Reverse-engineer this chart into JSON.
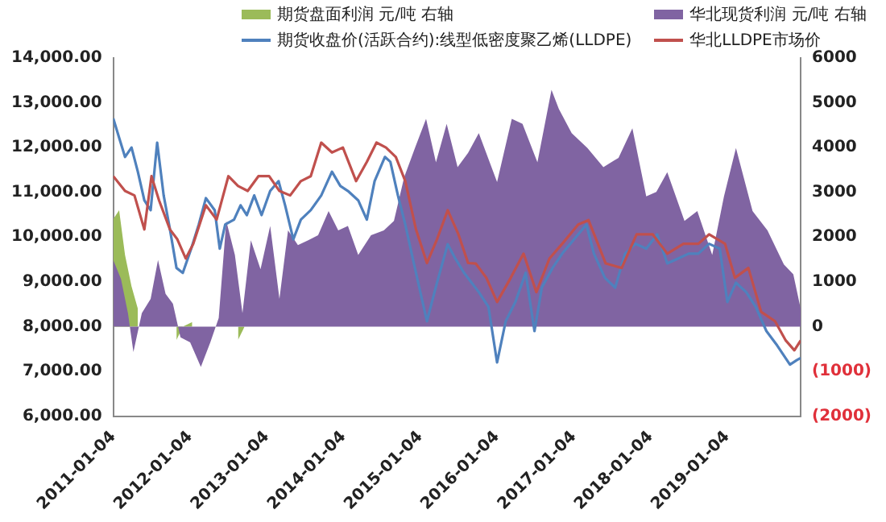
{
  "chart_data": {
    "type": "line",
    "legend": "top",
    "grid": false,
    "xlim": [
      "2011-01-04",
      "2019-12-20"
    ],
    "xticks": [
      "2011-01-04",
      "2012-01-04",
      "2013-01-04",
      "2014-01-04",
      "2015-01-04",
      "2016-01-04",
      "2017-01-04",
      "2018-01-04",
      "2019-01-04"
    ],
    "ylim": [
      6000,
      14000
    ],
    "yticks": [
      {
        "value": 6000,
        "label": "6,000.00"
      },
      {
        "value": 7000,
        "label": "7,000.00"
      },
      {
        "value": 8000,
        "label": "8,000.00"
      },
      {
        "value": 9000,
        "label": "9,000.00"
      },
      {
        "value": 10000,
        "label": "10,000.00"
      },
      {
        "value": 11000,
        "label": "11,000.00"
      },
      {
        "value": 12000,
        "label": "12,000.00"
      },
      {
        "value": 13000,
        "label": "13,000.00"
      },
      {
        "value": 14000,
        "label": "14,000.00"
      }
    ],
    "y2lim": [
      -2000,
      6000
    ],
    "y2ticks": [
      {
        "value": -2000,
        "label": "(2000)"
      },
      {
        "value": -1000,
        "label": "(1000)"
      },
      0,
      1000,
      2000,
      3000,
      4000,
      5000,
      6000
    ],
    "series": [
      {
        "name": "期货盘面利润 元/吨 右轴",
        "type": "area",
        "axis": "y2",
        "color": "#9bbb59",
        "x": [
          "2011-01-04",
          "2011-02-01",
          "2011-03-01",
          "2011-04-01",
          "2011-05-01",
          "2011-06-01",
          "2011-07-01",
          "2011-08-05",
          "2011-09-01",
          "2011-10-01",
          "2011-11-01",
          "2011-12-01",
          "2012-01-15",
          "2012-03-01",
          "2012-05-01",
          "2012-07-01",
          "2012-08-20",
          "2012-09-20"
        ],
        "values": [
          2400,
          2600,
          1600,
          900,
          400,
          null,
          null,
          null,
          null,
          null,
          -300,
          0,
          100,
          null,
          null,
          null,
          -300,
          0
        ]
      },
      {
        "name": "华北现货利润 元/吨 右轴",
        "type": "area",
        "axis": "y2",
        "color": "#8064a2",
        "x": [
          "2011-01-04",
          "2011-02-10",
          "2011-03-15",
          "2011-04-10",
          "2011-05-20",
          "2011-07-01",
          "2011-08-05",
          "2011-09-10",
          "2011-10-15",
          "2011-11-20",
          "2012-01-05",
          "2012-02-25",
          "2012-04-10",
          "2012-05-20",
          "2012-06-25",
          "2012-08-05",
          "2012-09-10",
          "2012-10-20",
          "2012-12-05",
          "2013-01-20",
          "2013-03-05",
          "2013-04-15",
          "2013-06-01",
          "2013-07-20",
          "2013-09-05",
          "2013-10-25",
          "2013-12-10",
          "2014-01-25",
          "2014-03-15",
          "2014-05-15",
          "2014-07-15",
          "2014-09-01",
          "2014-10-20",
          "2014-12-10",
          "2015-02-01",
          "2015-03-20",
          "2015-05-10",
          "2015-07-01",
          "2015-08-20",
          "2015-10-10",
          "2016-01-05",
          "2016-03-15",
          "2016-05-05",
          "2016-07-15",
          "2016-09-20",
          "2016-10-25",
          "2016-12-25",
          "2017-03-10",
          "2017-05-25",
          "2017-08-05",
          "2017-10-10",
          "2017-12-15",
          "2018-02-01",
          "2018-03-25",
          "2018-06-15",
          "2018-08-15",
          "2018-10-25",
          "2018-12-20",
          "2019-02-15",
          "2019-05-05",
          "2019-07-15",
          "2019-10-01",
          "2019-11-15",
          "2019-12-20"
        ],
        "values": [
          1490,
          1060,
          300,
          -570,
          300,
          620,
          1490,
          730,
          510,
          -240,
          -350,
          -900,
          -350,
          190,
          2360,
          1600,
          300,
          1930,
          1280,
          2250,
          620,
          2150,
          1820,
          1930,
          2040,
          2580,
          2150,
          2250,
          1600,
          2040,
          2150,
          2360,
          3340,
          3990,
          4640,
          3670,
          4530,
          3560,
          3880,
          4320,
          3230,
          4640,
          4530,
          3670,
          5290,
          4860,
          4320,
          3990,
          3560,
          3770,
          4430,
          2910,
          3010,
          3450,
          2360,
          2580,
          1600,
          2910,
          3990,
          2580,
          2150,
          1390,
          1170,
          400
        ]
      },
      {
        "name": "期货收盘价(活跃合约):线型低密度聚乙烯(LLDPE)",
        "color": "#4f81bd",
        "x": [
          "2011-01-04",
          "2011-02-01",
          "2011-03-01",
          "2011-04-01",
          "2011-05-01",
          "2011-06-01",
          "2011-07-01",
          "2011-08-01",
          "2011-09-01",
          "2011-10-01",
          "2011-11-01",
          "2011-12-01",
          "2012-01-10",
          "2012-02-15",
          "2012-03-20",
          "2012-05-01",
          "2012-05-25",
          "2012-06-20",
          "2012-08-01",
          "2012-09-01",
          "2012-10-01",
          "2012-11-05",
          "2012-12-10",
          "2013-01-20",
          "2013-03-01",
          "2013-04-01",
          "2013-05-10",
          "2013-06-15",
          "2013-08-01",
          "2013-09-20",
          "2013-11-10",
          "2013-12-20",
          "2014-01-25",
          "2014-03-15",
          "2014-04-25",
          "2014-06-01",
          "2014-07-20",
          "2014-08-15",
          "2014-09-20",
          "2014-10-25",
          "2014-12-15",
          "2015-02-05",
          "2015-03-25",
          "2015-05-15",
          "2015-06-20",
          "2015-08-01",
          "2015-10-10",
          "2015-11-25",
          "2016-01-05",
          "2016-02-15",
          "2016-04-01",
          "2016-05-20",
          "2016-07-01",
          "2016-08-05",
          "2016-09-25",
          "2016-11-10",
          "2017-01-25",
          "2017-03-05",
          "2017-04-10",
          "2017-06-01",
          "2017-07-20",
          "2017-09-05",
          "2017-10-25",
          "2017-12-15",
          "2018-02-05",
          "2018-03-25",
          "2018-05-15",
          "2018-07-05",
          "2018-08-20",
          "2018-10-10",
          "2018-11-30",
          "2019-01-05",
          "2019-02-15",
          "2019-04-05",
          "2019-05-20",
          "2019-07-10",
          "2019-08-30",
          "2019-10-30",
          "2019-12-01",
          "2019-12-20"
        ],
        "values": [
          12650,
          12220,
          11790,
          12000,
          11460,
          10820,
          10600,
          12110,
          10930,
          10170,
          9310,
          9200,
          9740,
          10280,
          10870,
          10600,
          9740,
          10280,
          10390,
          10710,
          10490,
          10930,
          10490,
          11030,
          11250,
          10710,
          9950,
          10390,
          10600,
          10930,
          11460,
          11140,
          11030,
          10820,
          10390,
          11250,
          11790,
          11680,
          10930,
          10280,
          9200,
          8120,
          8980,
          9840,
          9520,
          9200,
          8770,
          8440,
          7200,
          8120,
          8550,
          9200,
          7900,
          8870,
          9310,
          9630,
          10060,
          10280,
          9630,
          9090,
          8870,
          9630,
          9850,
          9740,
          10060,
          9410,
          9520,
          9630,
          9630,
          9850,
          9740,
          8550,
          8980,
          8770,
          8440,
          7900,
          7580,
          7150,
          7250,
          7300
        ]
      },
      {
        "name": "华北LLDPE市场价",
        "color": "#c0504d",
        "x": [
          "2011-01-04",
          "2011-03-01",
          "2011-04-15",
          "2011-06-01",
          "2011-07-05",
          "2011-08-10",
          "2011-10-01",
          "2011-11-05",
          "2011-12-15",
          "2012-01-20",
          "2012-03-20",
          "2012-05-10",
          "2012-07-05",
          "2012-08-20",
          "2012-10-05",
          "2012-11-25",
          "2013-01-15",
          "2013-03-05",
          "2013-04-25",
          "2013-06-15",
          "2013-08-01",
          "2013-09-20",
          "2013-11-10",
          "2014-01-01",
          "2014-03-05",
          "2014-04-25",
          "2014-06-10",
          "2014-07-25",
          "2014-09-10",
          "2014-10-25",
          "2014-12-15",
          "2015-02-05",
          "2015-03-25",
          "2015-05-15",
          "2015-07-05",
          "2015-08-20",
          "2015-09-25",
          "2015-11-15",
          "2016-01-05",
          "2016-03-10",
          "2016-05-10",
          "2016-07-10",
          "2016-09-10",
          "2016-11-10",
          "2017-01-25",
          "2017-03-15",
          "2017-06-05",
          "2017-08-20",
          "2017-10-30",
          "2018-01-15",
          "2018-03-25",
          "2018-06-10",
          "2018-08-20",
          "2018-10-10",
          "2018-12-25",
          "2019-02-10",
          "2019-04-15",
          "2019-06-15",
          "2019-08-20",
          "2019-10-10",
          "2019-11-20",
          "2019-12-20"
        ],
        "values": [
          11360,
          11030,
          10930,
          10170,
          11360,
          10820,
          10170,
          9950,
          9520,
          9850,
          10710,
          10390,
          11360,
          11140,
          11030,
          11360,
          11360,
          11030,
          10930,
          11250,
          11360,
          12110,
          11890,
          12000,
          11250,
          11680,
          12110,
          12000,
          11790,
          11250,
          10170,
          9420,
          9950,
          10600,
          10060,
          9420,
          9410,
          9090,
          8550,
          9090,
          9630,
          8770,
          9520,
          9850,
          10280,
          10380,
          9410,
          9310,
          10060,
          10060,
          9630,
          9850,
          9850,
          10060,
          9850,
          9090,
          9310,
          8330,
          8120,
          7690,
          7470,
          7690
        ]
      }
    ]
  }
}
